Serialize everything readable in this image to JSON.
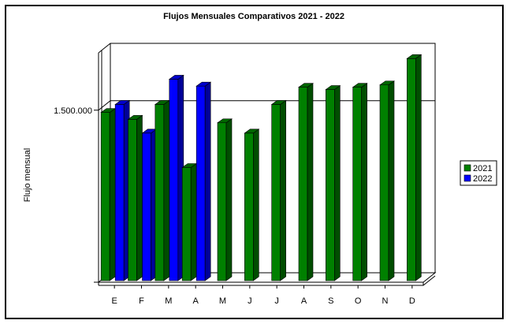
{
  "chart_data": {
    "type": "bar",
    "title": "Flujos Mensuales Comparativos 2021 - 2022",
    "ylabel": "Flujo mensual",
    "xlabel": "",
    "categories": [
      "E",
      "F",
      "M",
      "A",
      "M",
      "J",
      "J",
      "A",
      "S",
      "O",
      "N",
      "D"
    ],
    "yticks": [
      {
        "value": 1500000,
        "label": "1.500.000"
      }
    ],
    "ylim": [
      0,
      2000000
    ],
    "grid": true,
    "legend_position": "right",
    "series": [
      {
        "name": "2021",
        "color": "#008000",
        "values": [
          1480000,
          1420000,
          1550000,
          1000000,
          1390000,
          1300000,
          1550000,
          1700000,
          1680000,
          1700000,
          1720000,
          1950000
        ]
      },
      {
        "name": "2022",
        "color": "#0000ff",
        "values": [
          1550000,
          1300000,
          1770000,
          1710000,
          null,
          null,
          null,
          null,
          null,
          null,
          null,
          null
        ]
      }
    ]
  }
}
